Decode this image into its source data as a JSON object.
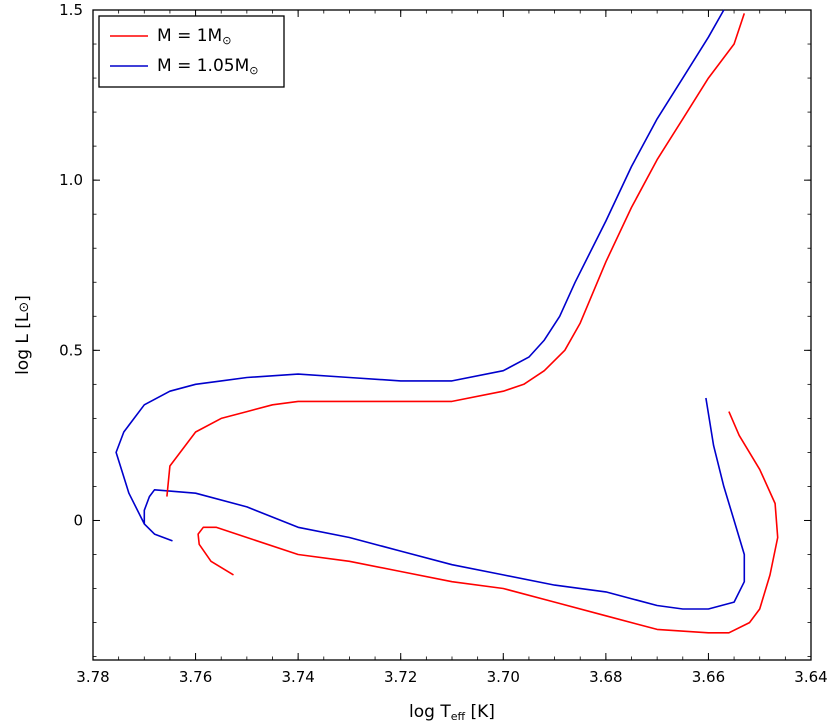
{
  "chart_data": {
    "type": "line",
    "xlabel": "log T",
    "xlabel_sub": "eff",
    "xlabel_unit": "[K]",
    "ylabel": "log L",
    "ylabel_unit": "[L",
    "ylabel_unit_close": "]",
    "xlim": [
      3.78,
      3.64
    ],
    "ylim": [
      -0.41,
      1.5
    ],
    "x_inverted": true,
    "x_ticks": [
      3.78,
      3.76,
      3.74,
      3.72,
      3.7,
      3.68,
      3.66,
      3.64
    ],
    "x_tick_labels": [
      "3.78",
      "3.76",
      "3.74",
      "3.72",
      "3.70",
      "3.68",
      "3.66",
      "3.64"
    ],
    "y_ticks": [
      0,
      0.5,
      1.0,
      1.5
    ],
    "y_tick_labels": [
      "0",
      "0.5",
      "1.0",
      "1.5"
    ],
    "legend_position": "top-left",
    "series": [
      {
        "name": "M = 1M",
        "color": "#ff0000",
        "x": [
          3.7526,
          3.757,
          3.7593,
          3.7595,
          3.7585,
          3.756,
          3.75,
          3.74,
          3.73,
          3.72,
          3.71,
          3.7,
          3.69,
          3.68,
          3.67,
          3.66,
          3.656,
          3.652,
          3.65,
          3.648,
          3.6465,
          3.647,
          3.65,
          3.654,
          3.656
        ],
        "y": [
          -0.16,
          -0.12,
          -0.07,
          -0.04,
          -0.02,
          -0.02,
          -0.05,
          -0.1,
          -0.12,
          -0.15,
          -0.18,
          -0.2,
          -0.24,
          -0.28,
          -0.32,
          -0.33,
          -0.33,
          -0.3,
          -0.26,
          -0.16,
          -0.05,
          0.05,
          0.15,
          0.25,
          0.32
        ]
      },
      {
        "name": "M = 1.05M",
        "color": "#0000cc",
        "x": [
          3.7645,
          3.768,
          3.77,
          3.77,
          3.769,
          3.768,
          3.76,
          3.75,
          3.74,
          3.73,
          3.72,
          3.71,
          3.7,
          3.69,
          3.68,
          3.67,
          3.665,
          3.66,
          3.655,
          3.653,
          3.653,
          3.655,
          3.657,
          3.659,
          3.6605
        ],
        "y": [
          -0.06,
          -0.04,
          -0.01,
          0.03,
          0.07,
          0.09,
          0.08,
          0.04,
          -0.02,
          -0.05,
          -0.09,
          -0.13,
          -0.16,
          -0.19,
          -0.21,
          -0.25,
          -0.26,
          -0.26,
          -0.24,
          -0.18,
          -0.1,
          0.0,
          0.1,
          0.22,
          0.36
        ]
      }
    ],
    "rgb_segments": [
      {
        "series": 0,
        "x": [
          3.7656,
          3.765,
          3.762,
          3.76,
          3.755,
          3.75,
          3.745,
          3.74,
          3.73,
          3.72,
          3.71,
          3.7,
          3.696,
          3.692,
          3.688,
          3.685,
          3.68,
          3.675,
          3.67,
          3.665,
          3.66,
          3.655,
          3.653
        ],
        "y": [
          0.07,
          0.16,
          0.22,
          0.26,
          0.3,
          0.32,
          0.34,
          0.35,
          0.35,
          0.35,
          0.35,
          0.38,
          0.4,
          0.44,
          0.5,
          0.58,
          0.76,
          0.92,
          1.06,
          1.18,
          1.3,
          1.4,
          1.49
        ]
      },
      {
        "series": 1,
        "x": [
          3.77,
          3.773,
          3.7755,
          3.774,
          3.77,
          3.765,
          3.76,
          3.755,
          3.75,
          3.74,
          3.73,
          3.72,
          3.71,
          3.7,
          3.695,
          3.692,
          3.689,
          3.686,
          3.68,
          3.675,
          3.67,
          3.665,
          3.66,
          3.657
        ],
        "y": [
          -0.01,
          0.08,
          0.2,
          0.26,
          0.34,
          0.38,
          0.4,
          0.41,
          0.42,
          0.43,
          0.42,
          0.41,
          0.41,
          0.44,
          0.48,
          0.53,
          0.6,
          0.7,
          0.88,
          1.04,
          1.18,
          1.3,
          1.42,
          1.5
        ]
      }
    ]
  }
}
